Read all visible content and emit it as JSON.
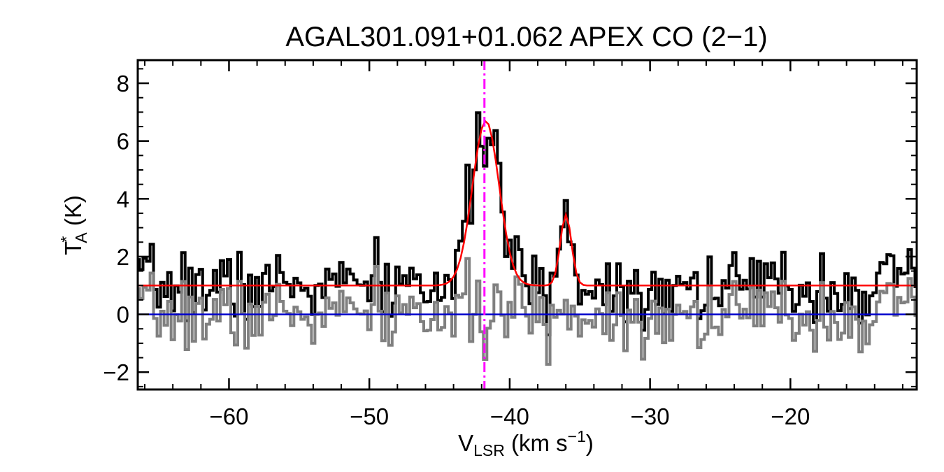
{
  "chart_data": {
    "type": "line",
    "title": "AGAL301.091+01.062  APEX CO (2−1)",
    "xlabel": {
      "main": "V",
      "sub": "LSR",
      "unit": " (km s",
      "sup": "−1",
      "close": ")"
    },
    "ylabel": {
      "main": "T",
      "sup": "*",
      "sub": "A",
      "unit": " (K)"
    },
    "xlim": [
      -66.5,
      -11
    ],
    "ylim": [
      -2.6,
      8.8
    ],
    "x_ticks": [
      -60,
      -50,
      -40,
      -30,
      -20
    ],
    "x_tick_labels": [
      "−60",
      "−50",
      "−40",
      "−30",
      "−20"
    ],
    "y_ticks": [
      -2,
      0,
      2,
      4,
      6,
      8
    ],
    "y_tick_labels": [
      "−2",
      "0",
      "2",
      "4",
      "6",
      "8"
    ],
    "x_minor_step": 2,
    "y_minor_step": 0.5,
    "colors": {
      "observed": "#000000",
      "residual": "#808080",
      "fit": "#ff0000",
      "zero_line": "#0000cc",
      "vlsr_marker": "#ff00ff"
    },
    "marker_velocity": -41.8,
    "baseline_offset": 1.0,
    "channel_width": 0.25,
    "components": [
      {
        "center": -41.7,
        "amplitude": 5.7,
        "sigma": 0.95
      },
      {
        "center": -36.0,
        "amplitude": 2.45,
        "sigma": 0.4
      }
    ],
    "series": [
      {
        "values": []
      },
      {
        "values": []
      },
      {
        "values": []
      }
    ]
  }
}
